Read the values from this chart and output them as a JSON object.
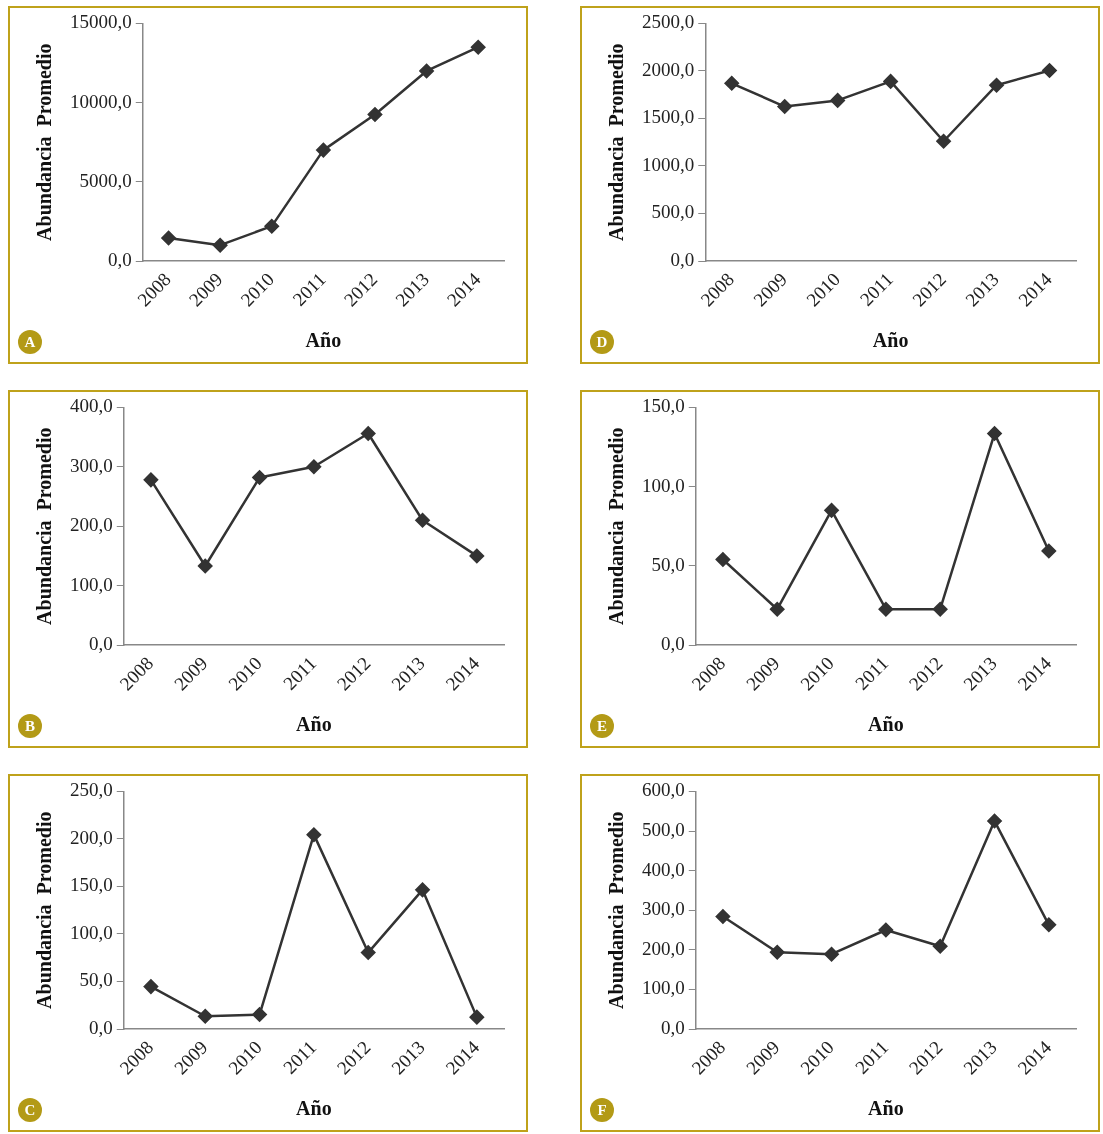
{
  "chart_data": [
    {
      "type": "line",
      "xlabel": "Año",
      "ylabel": "Abundancia  Promedio",
      "annotations": [
        "A"
      ],
      "categories": [
        "2008",
        "2009",
        "2010",
        "2011",
        "2012",
        "2013",
        "2014"
      ],
      "marker": "diamond",
      "line_style": "solid",
      "legend": false,
      "grid": false,
      "series": [
        {
          "color": "#333333",
          "values": [
            1450,
            1000,
            2200,
            7000,
            9250,
            12000,
            13500
          ]
        }
      ],
      "ylim": [
        0,
        15000
      ],
      "yticks": [
        {
          "value": 0,
          "label": "0,0"
        },
        {
          "value": 5000,
          "label": "5000,0"
        },
        {
          "value": 10000,
          "label": "10000,0"
        },
        {
          "value": 15000,
          "label": "15000,0"
        }
      ]
    },
    {
      "type": "line",
      "xlabel": "Año",
      "ylabel": "Abundancia  Promedio",
      "annotations": [
        "D"
      ],
      "categories": [
        "2008",
        "2009",
        "2010",
        "2011",
        "2012",
        "2013",
        "2014"
      ],
      "marker": "diamond",
      "line_style": "solid",
      "legend": false,
      "grid": false,
      "series": [
        {
          "color": "#333333",
          "values": [
            1870,
            1625,
            1690,
            1890,
            1260,
            1850,
            2005
          ]
        }
      ],
      "ylim": [
        0,
        2500
      ],
      "yticks": [
        {
          "value": 0,
          "label": "0,0"
        },
        {
          "value": 500,
          "label": "500,0"
        },
        {
          "value": 1000,
          "label": "1000,0"
        },
        {
          "value": 1500,
          "label": "1500,0"
        },
        {
          "value": 2000,
          "label": "2000,0"
        },
        {
          "value": 2500,
          "label": "2500,0"
        }
      ]
    },
    {
      "type": "line",
      "xlabel": "Año",
      "ylabel": "Abundancia  Promedio",
      "annotations": [
        "B"
      ],
      "categories": [
        "2008",
        "2009",
        "2010",
        "2011",
        "2012",
        "2013",
        "2014"
      ],
      "marker": "diamond",
      "line_style": "solid",
      "legend": false,
      "grid": false,
      "series": [
        {
          "color": "#333333",
          "values": [
            278,
            133,
            282,
            300,
            356,
            210,
            150
          ]
        }
      ],
      "ylim": [
        0,
        400
      ],
      "yticks": [
        {
          "value": 0,
          "label": "0,0"
        },
        {
          "value": 100,
          "label": "100,0"
        },
        {
          "value": 200,
          "label": "200,0"
        },
        {
          "value": 300,
          "label": "300,0"
        },
        {
          "value": 400,
          "label": "400,0"
        }
      ]
    },
    {
      "type": "line",
      "xlabel": "Año",
      "ylabel": "Abundancia  Promedio",
      "annotations": [
        "E"
      ],
      "categories": [
        "2008",
        "2009",
        "2010",
        "2011",
        "2012",
        "2013",
        "2014"
      ],
      "marker": "diamond",
      "line_style": "solid",
      "legend": false,
      "grid": false,
      "series": [
        {
          "color": "#333333",
          "values": [
            54,
            22.6,
            85,
            22.6,
            22.6,
            133.5,
            59.4
          ]
        }
      ],
      "ylim": [
        0,
        150
      ],
      "yticks": [
        {
          "value": 0,
          "label": "0,0"
        },
        {
          "value": 50,
          "label": "50,0"
        },
        {
          "value": 100,
          "label": "100,0"
        },
        {
          "value": 150,
          "label": "150,0"
        }
      ]
    },
    {
      "type": "line",
      "xlabel": "Año",
      "ylabel": "Abundancia  Promedio",
      "annotations": [
        "C"
      ],
      "categories": [
        "2008",
        "2009",
        "2010",
        "2011",
        "2012",
        "2013",
        "2014"
      ],
      "marker": "diamond",
      "line_style": "solid",
      "legend": false,
      "grid": false,
      "series": [
        {
          "color": "#333333",
          "values": [
            44.6,
            13.4,
            15.2,
            204.5,
            80.4,
            146.4,
            12.5
          ]
        }
      ],
      "ylim": [
        0,
        250
      ],
      "yticks": [
        {
          "value": 0,
          "label": "0,0"
        },
        {
          "value": 50,
          "label": "50,0"
        },
        {
          "value": 100,
          "label": "100,0"
        },
        {
          "value": 150,
          "label": "150,0"
        },
        {
          "value": 200,
          "label": "200,0"
        },
        {
          "value": 250,
          "label": "250,0"
        }
      ]
    },
    {
      "type": "line",
      "xlabel": "Año",
      "ylabel": "Abundancia  Promedio",
      "annotations": [
        "F"
      ],
      "categories": [
        "2008",
        "2009",
        "2010",
        "2011",
        "2012",
        "2013",
        "2014"
      ],
      "marker": "diamond",
      "line_style": "solid",
      "legend": false,
      "grid": false,
      "series": [
        {
          "color": "#333333",
          "values": [
            284,
            194,
            189,
            250,
            209,
            525,
            263
          ]
        }
      ],
      "ylim": [
        0,
        600
      ],
      "yticks": [
        {
          "value": 0,
          "label": "0,0"
        },
        {
          "value": 100,
          "label": "100,0"
        },
        {
          "value": 200,
          "label": "200,0"
        },
        {
          "value": 300,
          "label": "300,0"
        },
        {
          "value": 400,
          "label": "400,0"
        },
        {
          "value": 500,
          "label": "500,0"
        },
        {
          "value": 600,
          "label": "600,0"
        }
      ]
    }
  ]
}
